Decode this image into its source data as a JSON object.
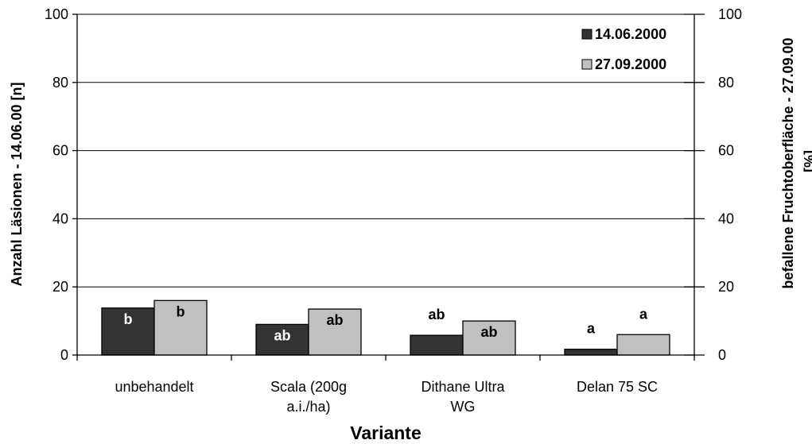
{
  "chart_data": {
    "type": "bar",
    "categories": [
      [
        "unbehandelt"
      ],
      [
        "Scala (200g",
        "a.i./ha)"
      ],
      [
        "Dithane Ultra",
        "WG"
      ],
      [
        "Delan 75 SC"
      ]
    ],
    "series": [
      {
        "name": "14.06.2000",
        "values": [
          13.8,
          9.0,
          5.8,
          1.7
        ],
        "labels": [
          "b",
          "ab",
          "ab",
          "a"
        ],
        "color": "#333333"
      },
      {
        "name": "27.09.2000",
        "values": [
          16.0,
          13.5,
          10.0,
          6.0
        ],
        "labels": [
          "b",
          "ab",
          "ab",
          "a"
        ],
        "color": "#c0c0c0"
      }
    ],
    "xlabel": "Variante",
    "ylabel": "Anzahl Läsionen - 14.06.00 [n]",
    "y2label": [
      "befallene Fruchtoberfläche - 27.09.00",
      "[%]"
    ],
    "ylim": [
      0,
      100
    ],
    "y2lim": [
      0,
      100
    ],
    "yticks": [
      "0",
      "20",
      "40",
      "60",
      "80",
      "100"
    ],
    "grid": true,
    "legend_position": "top-right"
  }
}
